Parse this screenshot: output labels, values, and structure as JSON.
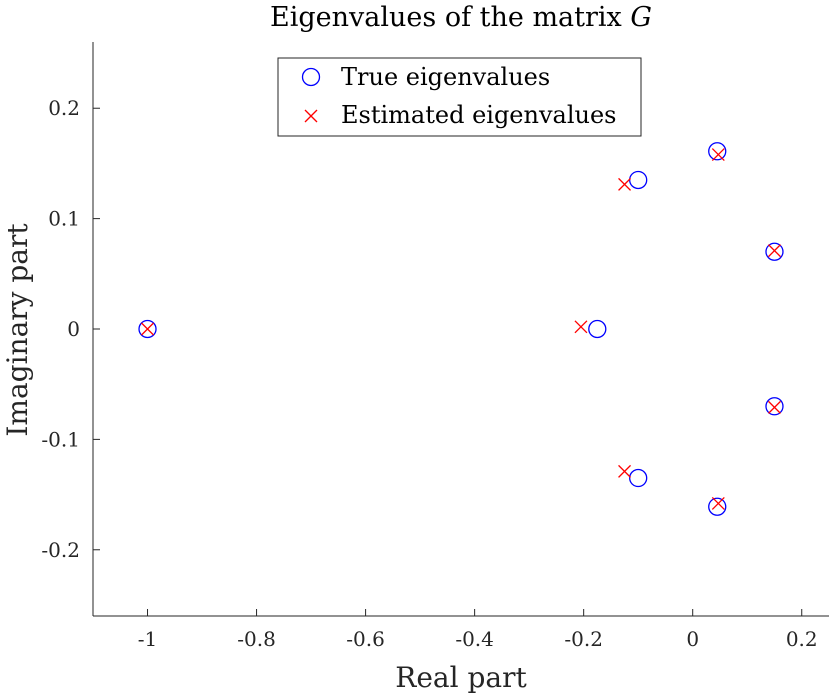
{
  "chart_data": {
    "type": "scatter",
    "title": "Eigenvalues of the matrix",
    "title_symbol": "G",
    "xlabel": "Real part",
    "ylabel": "Imaginary part",
    "xlim": [
      -1.1,
      0.25
    ],
    "ylim": [
      -0.26,
      0.26
    ],
    "xticks": [
      -1,
      -0.8,
      -0.6,
      -0.4,
      -0.2,
      0,
      0.2
    ],
    "xtick_labels": [
      "-1",
      "-0.8",
      "-0.6",
      "-0.4",
      "-0.2",
      "0",
      "0.2"
    ],
    "yticks": [
      -0.2,
      -0.1,
      0,
      0.1,
      0.2
    ],
    "ytick_labels": [
      "-0.2",
      "-0.1",
      "0",
      "0.1",
      "0.2"
    ],
    "grid": false,
    "legend_position": "top-center",
    "series": [
      {
        "name": "True eigenvalues",
        "marker": "circle",
        "color": "#0000ff",
        "points": [
          [
            -1.0,
            0.0
          ],
          [
            -0.175,
            0.0
          ],
          [
            -0.1,
            0.135
          ],
          [
            -0.1,
            -0.135
          ],
          [
            0.045,
            0.161
          ],
          [
            0.045,
            -0.161
          ],
          [
            0.15,
            0.07
          ],
          [
            0.15,
            -0.07
          ]
        ]
      },
      {
        "name": "Estimated eigenvalues",
        "marker": "x",
        "color": "#ff0000",
        "points": [
          [
            -1.0,
            0.0
          ],
          [
            -0.205,
            0.002
          ],
          [
            -0.125,
            0.131
          ],
          [
            -0.125,
            -0.129
          ],
          [
            0.047,
            0.158
          ],
          [
            0.047,
            -0.158
          ],
          [
            0.15,
            0.071
          ],
          [
            0.15,
            -0.071
          ]
        ]
      }
    ]
  }
}
